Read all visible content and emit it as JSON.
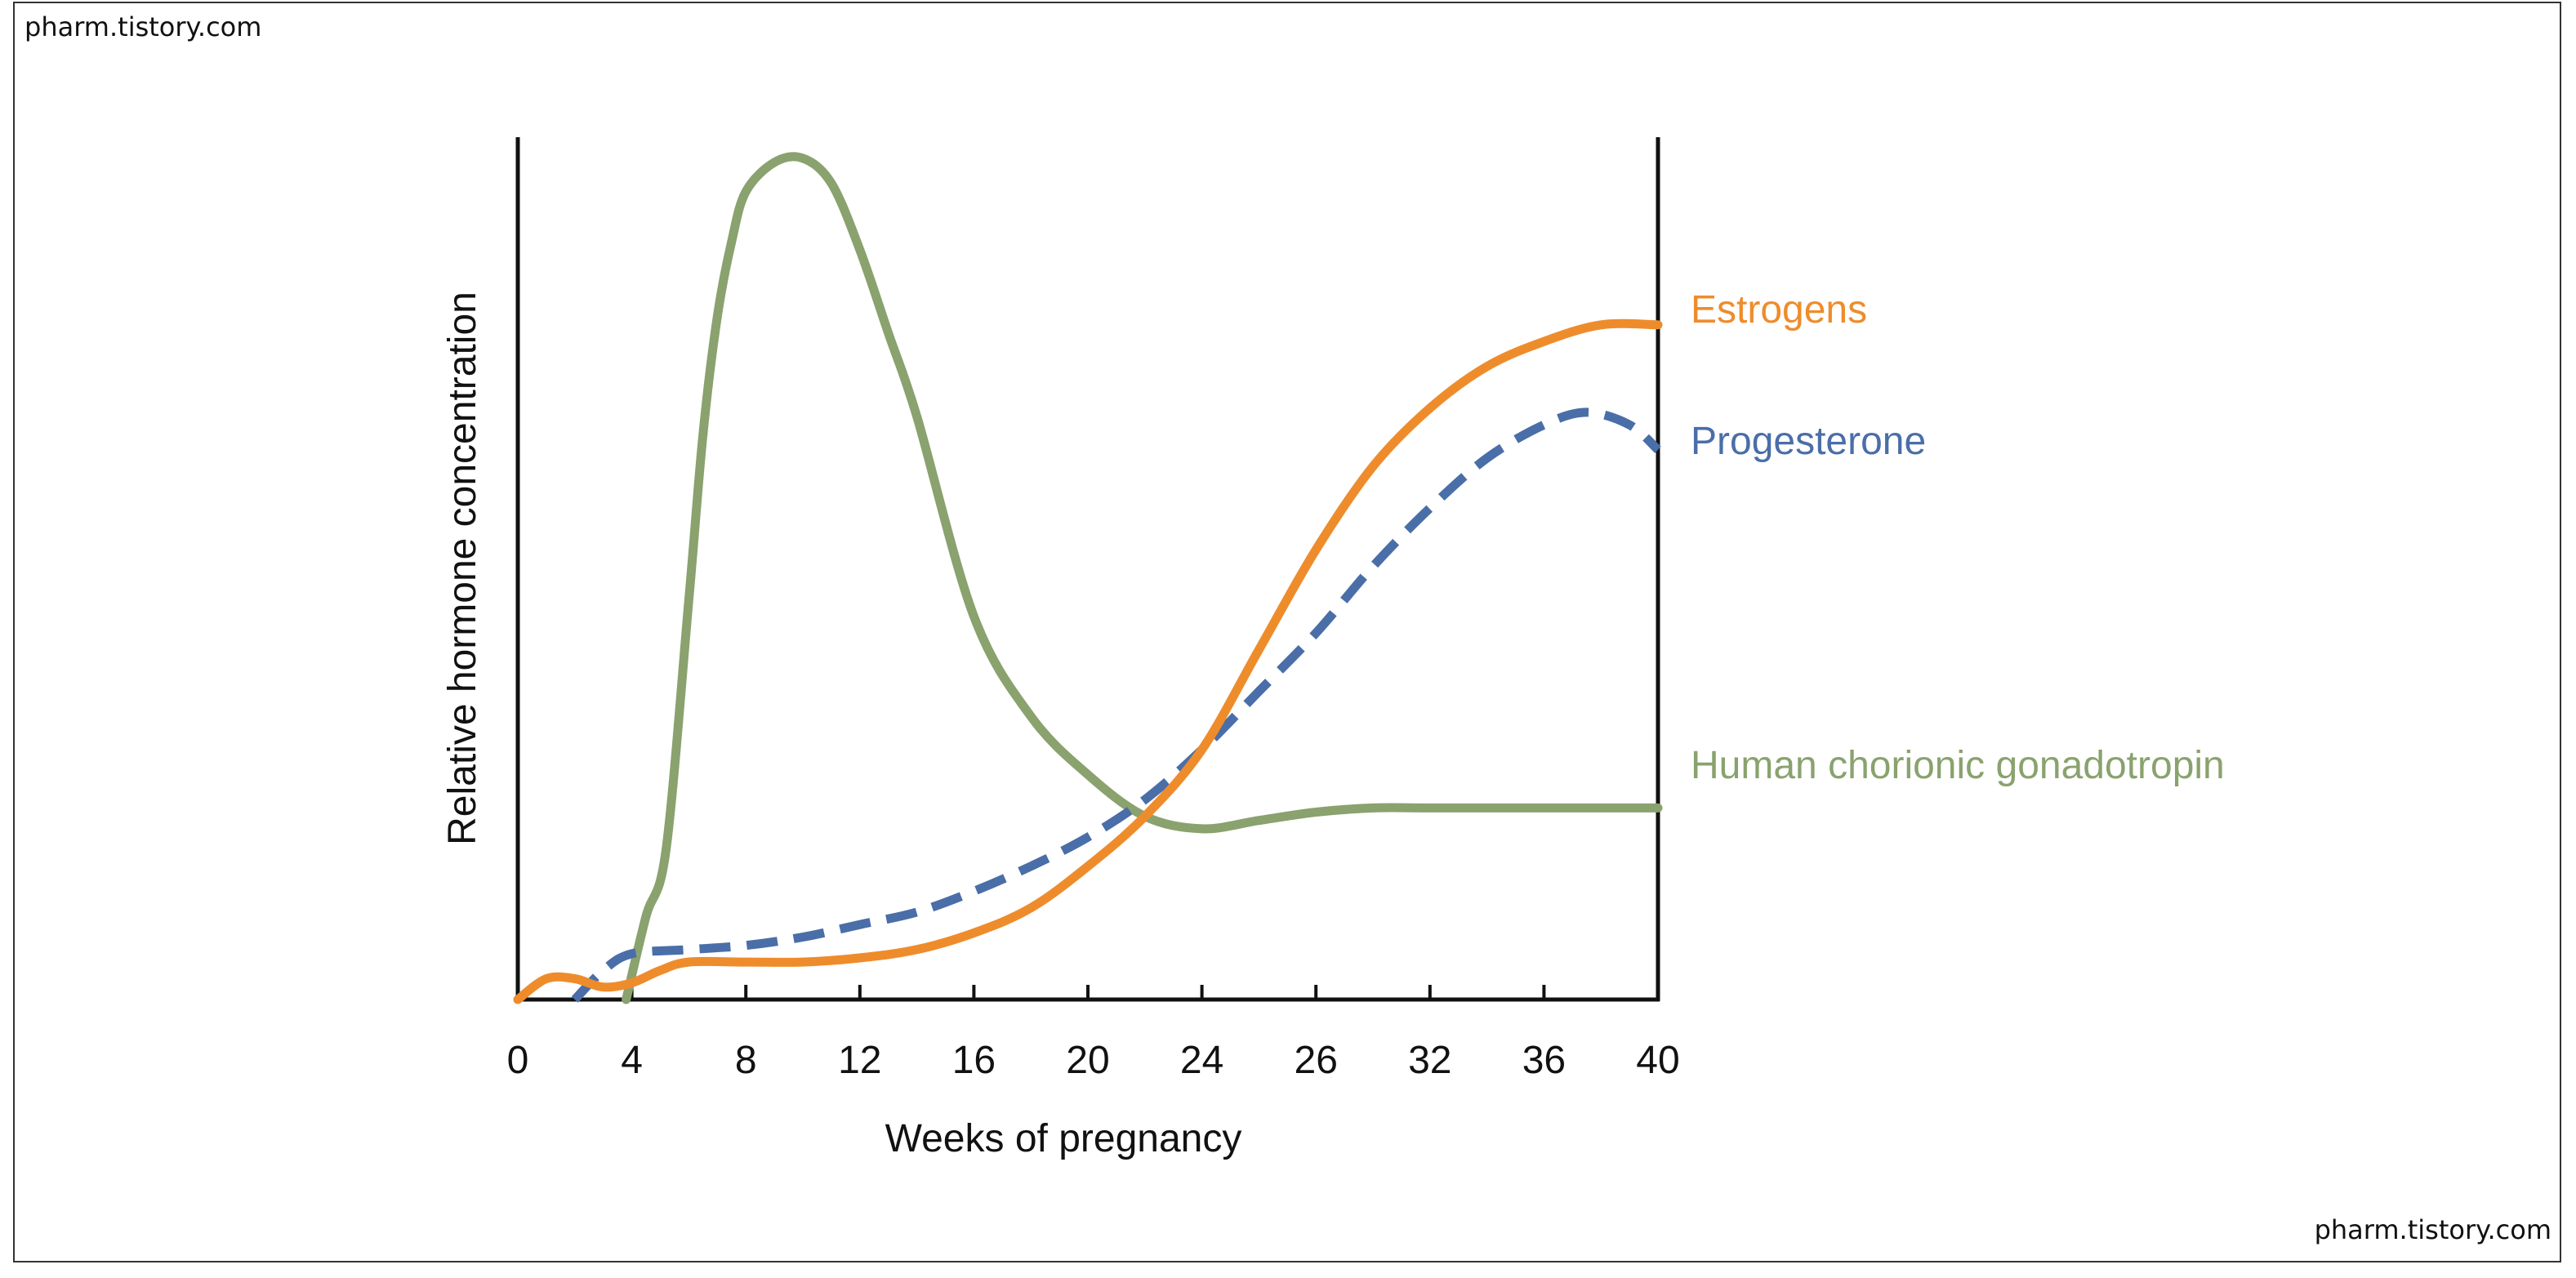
{
  "watermark": {
    "top": "pharm.tistory.com",
    "bottom": "pharm.tistory.com"
  },
  "chart_data": {
    "type": "line",
    "title": "",
    "xlabel": "Weeks of pregnancy",
    "ylabel": "Relative hormone concentration",
    "xlim": [
      0,
      40
    ],
    "ylim": [
      0,
      100
    ],
    "x_tick_labels": [
      "0",
      "4",
      "8",
      "12",
      "16",
      "20",
      "24",
      "26",
      "32",
      "36",
      "40"
    ],
    "grid": false,
    "legend_position": "right (inline labels at line ends)",
    "series": [
      {
        "name": "Human chorionic gonadotropin",
        "color": "#8aa26e",
        "style": "solid",
        "x": [
          3.8,
          4.5,
          5.2,
          6,
          6.5,
          7,
          7.5,
          8,
          9,
          10,
          11,
          12,
          13,
          14,
          16,
          18,
          20,
          22,
          24,
          26,
          28,
          30,
          32,
          36,
          40
        ],
        "y": [
          0,
          10,
          18,
          48,
          68,
          82,
          91,
          97,
          100.5,
          101,
          98,
          90,
          80,
          70,
          46,
          34,
          27,
          22,
          20.5,
          21.5,
          22.5,
          23,
          23,
          23,
          23
        ]
      },
      {
        "name": "Estrogens",
        "color": "#ee8c2c",
        "style": "solid",
        "x": [
          0,
          1,
          2,
          3,
          4,
          5,
          6,
          8,
          10,
          12,
          14,
          16,
          18,
          20,
          22,
          24,
          26,
          28,
          30,
          32,
          34,
          36,
          38,
          40
        ],
        "y": [
          0,
          2.5,
          2.5,
          1.5,
          2,
          3.5,
          4.5,
          4.5,
          4.5,
          5,
          6,
          8,
          11,
          16,
          22,
          30,
          42,
          54,
          64,
          71,
          76,
          79,
          81,
          81
        ]
      },
      {
        "name": "Progesterone",
        "color": "#4a6ea8",
        "style": "dashed",
        "x": [
          2,
          3,
          4,
          6,
          8,
          10,
          12,
          14,
          16,
          18,
          20,
          22,
          24,
          26,
          28,
          30,
          32,
          34,
          36,
          37.5,
          39,
          40
        ],
        "y": [
          0,
          3.5,
          5.5,
          6,
          6.5,
          7.5,
          9,
          10.5,
          13,
          16,
          19.5,
          24,
          30,
          37,
          44,
          52,
          59,
          65,
          69,
          70.5,
          69,
          66
        ]
      }
    ]
  }
}
